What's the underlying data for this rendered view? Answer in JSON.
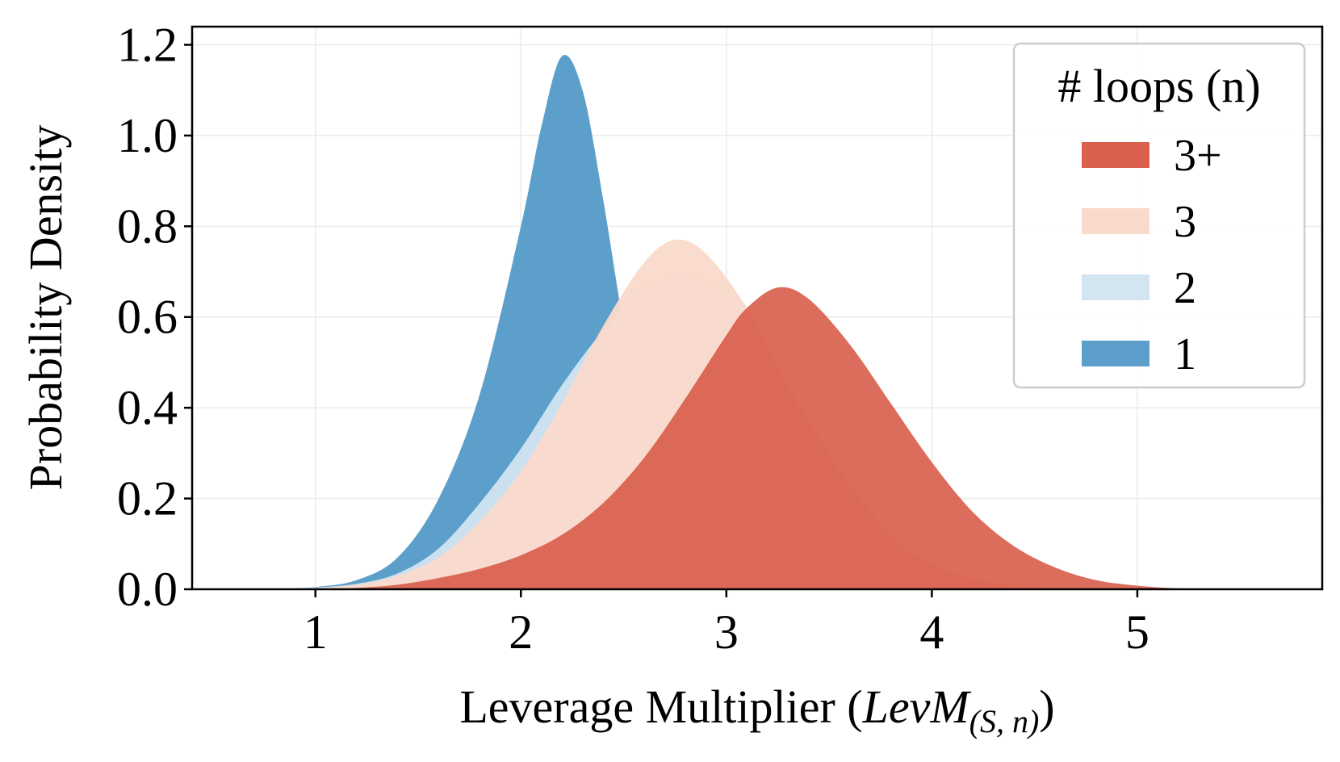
{
  "chart_data": {
    "type": "area",
    "title": "",
    "xlabel_prefix": "Leverage Multiplier (",
    "xlabel_var": "LevM",
    "xlabel_sub": "(S, n)",
    "xlabel_suffix": ")",
    "ylabel": "Probability Density",
    "xlim": [
      0.4,
      5.9
    ],
    "ylim": [
      0.0,
      1.24
    ],
    "xticks": [
      1,
      2,
      3,
      4,
      5
    ],
    "yticks": [
      0.0,
      0.2,
      0.4,
      0.6,
      0.8,
      1.0,
      1.2
    ],
    "ytick_labels": [
      "0.0",
      "0.2",
      "0.4",
      "0.6",
      "0.8",
      "1.0",
      "1.2"
    ],
    "xtick_labels": [
      "1",
      "2",
      "3",
      "4",
      "5"
    ],
    "grid": true,
    "legend": {
      "title": "# loops (n)",
      "placement": "top-right",
      "entries": [
        "3+",
        "3",
        "2",
        "1"
      ]
    },
    "series": [
      {
        "name": "1",
        "color": "#5b9fca",
        "points": [
          [
            0.8,
            0.0
          ],
          [
            1.0,
            0.005
          ],
          [
            1.2,
            0.02
          ],
          [
            1.4,
            0.07
          ],
          [
            1.6,
            0.2
          ],
          [
            1.8,
            0.43
          ],
          [
            2.0,
            0.8
          ],
          [
            2.1,
            1.02
          ],
          [
            2.2,
            1.175
          ],
          [
            2.3,
            1.1
          ],
          [
            2.4,
            0.86
          ],
          [
            2.5,
            0.58
          ],
          [
            2.6,
            0.34
          ],
          [
            2.8,
            0.1
          ],
          [
            3.0,
            0.025
          ],
          [
            3.2,
            0.004
          ],
          [
            3.4,
            0.0
          ]
        ]
      },
      {
        "name": "2",
        "color": "#d2e5f1",
        "points": [
          [
            0.8,
            0.0
          ],
          [
            1.0,
            0.004
          ],
          [
            1.2,
            0.012
          ],
          [
            1.4,
            0.035
          ],
          [
            1.6,
            0.09
          ],
          [
            1.8,
            0.19
          ],
          [
            2.0,
            0.31
          ],
          [
            2.2,
            0.45
          ],
          [
            2.4,
            0.57
          ],
          [
            2.6,
            0.66
          ],
          [
            2.8,
            0.69
          ],
          [
            3.0,
            0.64
          ],
          [
            3.2,
            0.52
          ],
          [
            3.4,
            0.37
          ],
          [
            3.6,
            0.23
          ],
          [
            3.8,
            0.12
          ],
          [
            4.0,
            0.05
          ],
          [
            4.3,
            0.012
          ],
          [
            4.7,
            0.0
          ]
        ]
      },
      {
        "name": "3",
        "color": "#fadacb",
        "points": [
          [
            0.8,
            0.0
          ],
          [
            1.0,
            0.003
          ],
          [
            1.2,
            0.01
          ],
          [
            1.4,
            0.03
          ],
          [
            1.6,
            0.07
          ],
          [
            1.8,
            0.15
          ],
          [
            2.0,
            0.26
          ],
          [
            2.2,
            0.41
          ],
          [
            2.4,
            0.58
          ],
          [
            2.6,
            0.72
          ],
          [
            2.75,
            0.77
          ],
          [
            2.9,
            0.74
          ],
          [
            3.1,
            0.62
          ],
          [
            3.3,
            0.45
          ],
          [
            3.5,
            0.29
          ],
          [
            3.7,
            0.16
          ],
          [
            3.9,
            0.08
          ],
          [
            4.2,
            0.025
          ],
          [
            4.6,
            0.003
          ],
          [
            5.0,
            0.0
          ]
        ]
      },
      {
        "name": "3+",
        "color": "#d9604d",
        "points": [
          [
            1.0,
            0.0
          ],
          [
            1.2,
            0.003
          ],
          [
            1.4,
            0.01
          ],
          [
            1.6,
            0.025
          ],
          [
            1.8,
            0.045
          ],
          [
            2.0,
            0.075
          ],
          [
            2.2,
            0.12
          ],
          [
            2.4,
            0.19
          ],
          [
            2.6,
            0.29
          ],
          [
            2.8,
            0.42
          ],
          [
            3.0,
            0.56
          ],
          [
            3.1,
            0.62
          ],
          [
            3.25,
            0.665
          ],
          [
            3.4,
            0.64
          ],
          [
            3.6,
            0.54
          ],
          [
            3.8,
            0.41
          ],
          [
            4.0,
            0.28
          ],
          [
            4.2,
            0.17
          ],
          [
            4.4,
            0.095
          ],
          [
            4.6,
            0.048
          ],
          [
            4.8,
            0.02
          ],
          [
            5.0,
            0.008
          ],
          [
            5.2,
            0.002
          ],
          [
            5.5,
            0.0
          ]
        ]
      }
    ]
  }
}
